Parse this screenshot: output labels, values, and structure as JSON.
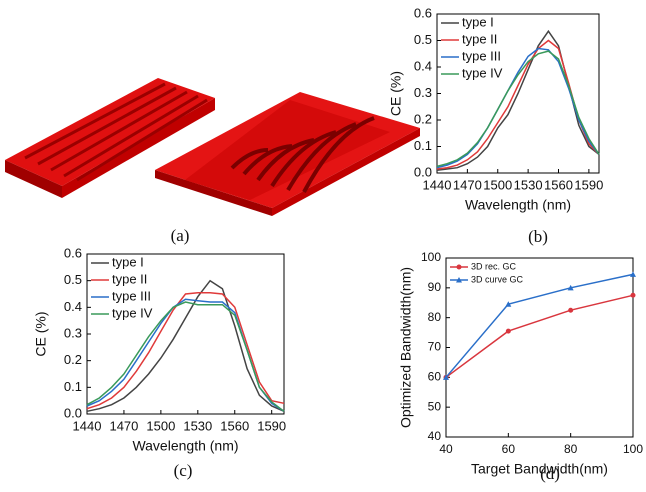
{
  "panel_a": {
    "caption": "(a)"
  },
  "chart_data": [
    {
      "type": "line",
      "caption": "(b)",
      "x_label": "Wavelength (nm)",
      "y_label": "CE (%)",
      "legend": "top-left",
      "xlim": [
        1440,
        1600
      ],
      "xticks": [
        1440,
        1470,
        1500,
        1530,
        1560,
        1590
      ],
      "ylim": [
        0,
        0.6
      ],
      "yticks": [
        {
          "value": 0,
          "label": "0.0"
        },
        {
          "value": 0.1,
          "label": "0.1"
        },
        {
          "value": 0.2,
          "label": "0.2"
        },
        {
          "value": 0.3,
          "label": "0.3"
        },
        {
          "value": 0.4,
          "label": "0.4"
        },
        {
          "value": 0.5,
          "label": "0.5"
        },
        {
          "value": 0.6,
          "label": "0.6"
        }
      ],
      "x": [
        1440,
        1450,
        1460,
        1470,
        1480,
        1490,
        1500,
        1510,
        1520,
        1530,
        1540,
        1550,
        1560,
        1570,
        1580,
        1590,
        1600
      ],
      "series": [
        {
          "name": "type I",
          "color": "#444444",
          "values": [
            0.01,
            0.015,
            0.02,
            0.035,
            0.06,
            0.1,
            0.17,
            0.22,
            0.3,
            0.39,
            0.48,
            0.535,
            0.48,
            0.33,
            0.18,
            0.1,
            0.07
          ]
        },
        {
          "name": "type II",
          "color": "#e03a3a",
          "values": [
            0.015,
            0.02,
            0.03,
            0.05,
            0.08,
            0.13,
            0.19,
            0.25,
            0.33,
            0.41,
            0.47,
            0.5,
            0.47,
            0.34,
            0.2,
            0.11,
            0.07
          ]
        },
        {
          "name": "type III",
          "color": "#2a6fc9",
          "values": [
            0.02,
            0.03,
            0.045,
            0.07,
            0.11,
            0.17,
            0.24,
            0.31,
            0.38,
            0.44,
            0.47,
            0.465,
            0.42,
            0.32,
            0.2,
            0.12,
            0.07
          ]
        },
        {
          "name": "type IV",
          "color": "#3a9a5a",
          "values": [
            0.025,
            0.035,
            0.05,
            0.075,
            0.115,
            0.17,
            0.24,
            0.31,
            0.37,
            0.42,
            0.45,
            0.46,
            0.43,
            0.33,
            0.21,
            0.13,
            0.07
          ]
        }
      ]
    },
    {
      "type": "line",
      "caption": "(c)",
      "x_label": "Wavelength (nm)",
      "y_label": "CE (%)",
      "legend": "top-left",
      "xlim": [
        1440,
        1600
      ],
      "xticks": [
        1440,
        1470,
        1500,
        1530,
        1560,
        1590
      ],
      "ylim": [
        0,
        0.6
      ],
      "yticks": [
        {
          "value": 0,
          "label": "0.0"
        },
        {
          "value": 0.1,
          "label": "0.1"
        },
        {
          "value": 0.2,
          "label": "0.2"
        },
        {
          "value": 0.3,
          "label": "0.3"
        },
        {
          "value": 0.4,
          "label": "0.4"
        },
        {
          "value": 0.5,
          "label": "0.5"
        },
        {
          "value": 0.6,
          "label": "0.6"
        }
      ],
      "x": [
        1440,
        1450,
        1460,
        1470,
        1480,
        1490,
        1500,
        1510,
        1520,
        1530,
        1540,
        1550,
        1560,
        1570,
        1580,
        1590,
        1600
      ],
      "series": [
        {
          "name": "type I",
          "color": "#444444",
          "values": [
            0.01,
            0.02,
            0.035,
            0.06,
            0.1,
            0.15,
            0.21,
            0.28,
            0.36,
            0.44,
            0.5,
            0.47,
            0.33,
            0.17,
            0.07,
            0.03,
            0.01
          ]
        },
        {
          "name": "type II",
          "color": "#e03a3a",
          "values": [
            0.02,
            0.035,
            0.06,
            0.1,
            0.16,
            0.23,
            0.31,
            0.39,
            0.45,
            0.455,
            0.455,
            0.45,
            0.4,
            0.26,
            0.12,
            0.05,
            0.04
          ]
        },
        {
          "name": "type III",
          "color": "#2a6fc9",
          "values": [
            0.03,
            0.05,
            0.085,
            0.13,
            0.2,
            0.27,
            0.34,
            0.4,
            0.43,
            0.425,
            0.42,
            0.42,
            0.38,
            0.24,
            0.1,
            0.04,
            0.01
          ]
        },
        {
          "name": "type IV",
          "color": "#3a9a5a",
          "values": [
            0.035,
            0.06,
            0.1,
            0.15,
            0.22,
            0.29,
            0.35,
            0.4,
            0.42,
            0.41,
            0.41,
            0.41,
            0.37,
            0.24,
            0.1,
            0.045,
            0.01
          ]
        }
      ]
    },
    {
      "type": "line",
      "caption": "(d)",
      "x_label": "Target Bandwidth(nm)",
      "y_label": "Optimized Bandwidth(nm)",
      "legend": "top-left",
      "xlim": [
        40,
        100
      ],
      "xticks": [
        40,
        60,
        80,
        100
      ],
      "ylim": [
        40,
        100
      ],
      "yticks": [
        40,
        50,
        60,
        70,
        80,
        90,
        100
      ],
      "x": [
        40,
        60,
        80,
        100
      ],
      "series": [
        {
          "name": "3D rec. GC",
          "color": "#d9363e",
          "marker": "circle",
          "values": [
            60,
            75.5,
            82.5,
            87.5
          ]
        },
        {
          "name": "3D curve GC",
          "color": "#2a6fc9",
          "marker": "triangle",
          "values": [
            60,
            84.5,
            90,
            94.5
          ]
        }
      ]
    }
  ]
}
